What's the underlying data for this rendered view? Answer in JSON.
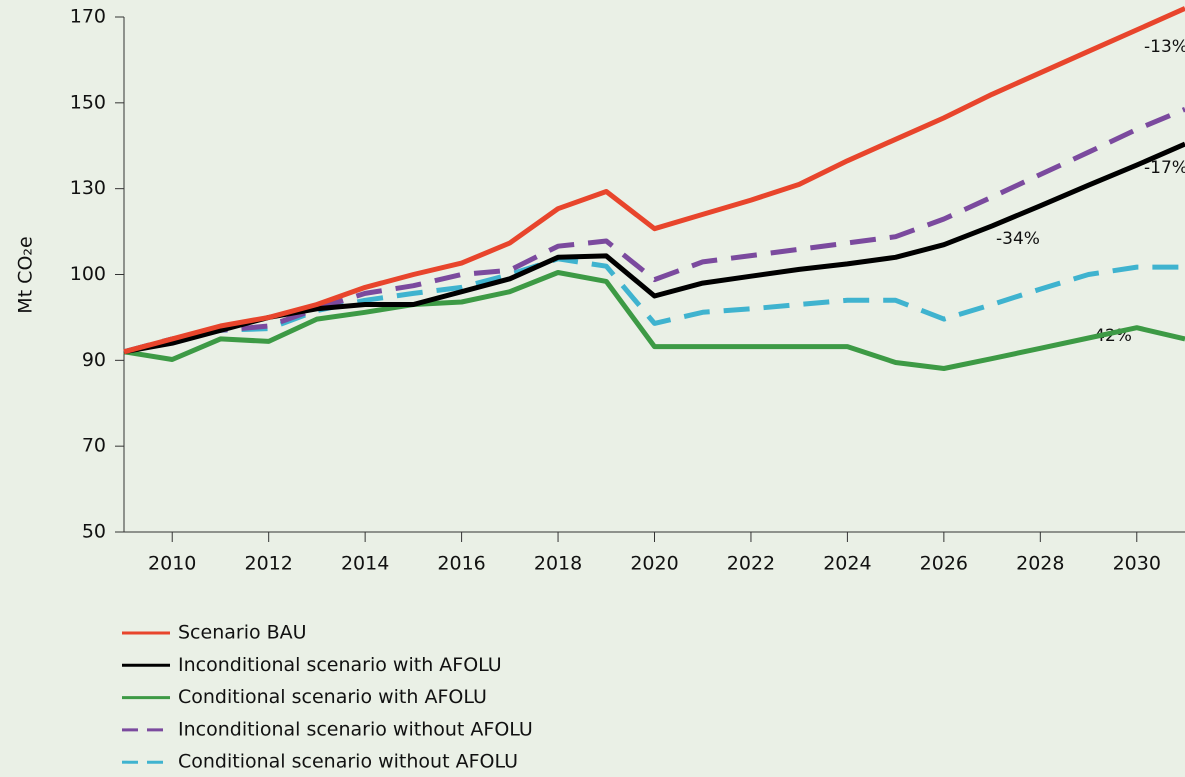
{
  "chart_data": {
    "type": "line",
    "y_label": "Mt CO₂e",
    "x": [
      2009,
      2010,
      2011,
      2012,
      2013,
      2014,
      2015,
      2016,
      2017,
      2018,
      2019,
      2020,
      2021,
      2022,
      2023,
      2024,
      2025,
      2026,
      2027,
      2028,
      2029,
      2030,
      2031
    ],
    "xlim": [
      2009,
      2031
    ],
    "xticks": [
      2010,
      2012,
      2014,
      2016,
      2018,
      2020,
      2022,
      2024,
      2026,
      2028,
      2030
    ],
    "ylim": [
      50,
      170
    ],
    "yticks": [
      50,
      70,
      90,
      100,
      130,
      150,
      170
    ],
    "y_scale": "piecewise",
    "series": [
      {
        "name": "Scenario BAU",
        "color": "#e8452c",
        "dashed": false,
        "values": [
          91,
          92.5,
          94,
          95,
          96.5,
          98.5,
          100,
          104,
          111,
          123,
          129,
          116,
          121,
          126,
          131,
          136.5,
          141.5,
          146.5,
          152,
          157,
          162,
          167,
          172
        ]
      },
      {
        "name": "Inconditional scenario with AFOLU",
        "color": "#000000",
        "dashed": false,
        "values": [
          91,
          92,
          93.5,
          95,
          96,
          96.5,
          96.5,
          98,
          99.5,
          106,
          106.5,
          97.5,
          99,
          99.8,
          101.8,
          103.7,
          106,
          110.4,
          117,
          124,
          130.8,
          135.5,
          140.4
        ]
      },
      {
        "name": "Conditional scenario with AFOLU",
        "color": "#3d9a45",
        "dashed": false,
        "values": [
          91,
          90.1,
          92.5,
          92.2,
          94.8,
          95.6,
          96.5,
          96.8,
          98,
          100.7,
          99.2,
          91.6,
          91.6,
          91.6,
          91.6,
          91.6,
          89.5,
          88.1,
          90.2,
          91.4,
          92.6,
          93.8,
          92.5
        ]
      },
      {
        "name": "Inconditional scenario without AFOLU",
        "color": "#7b4a9e",
        "dashed": true,
        "values": [
          91,
          92.5,
          93.5,
          94,
          96,
          97.8,
          98.7,
          100,
          101.5,
          109.9,
          111.7,
          99.4,
          104.4,
          106.6,
          108.8,
          111,
          113.2,
          119.4,
          127.1,
          133.3,
          138.5,
          143.8,
          148.5
        ]
      },
      {
        "name": "Conditional scenario without AFOLU",
        "color": "#3fb3cf",
        "dashed": true,
        "values": [
          91,
          92.5,
          93.5,
          93.7,
          95.8,
          97,
          97.8,
          98.5,
          100,
          105.5,
          102.9,
          94.3,
          95.6,
          96,
          96.5,
          97,
          97,
          94.8,
          96.5,
          98.3,
          100,
          102.6,
          102.6
        ]
      }
    ],
    "annotations": [
      "-13%",
      "-17%",
      "-34%",
      "-42%"
    ]
  }
}
